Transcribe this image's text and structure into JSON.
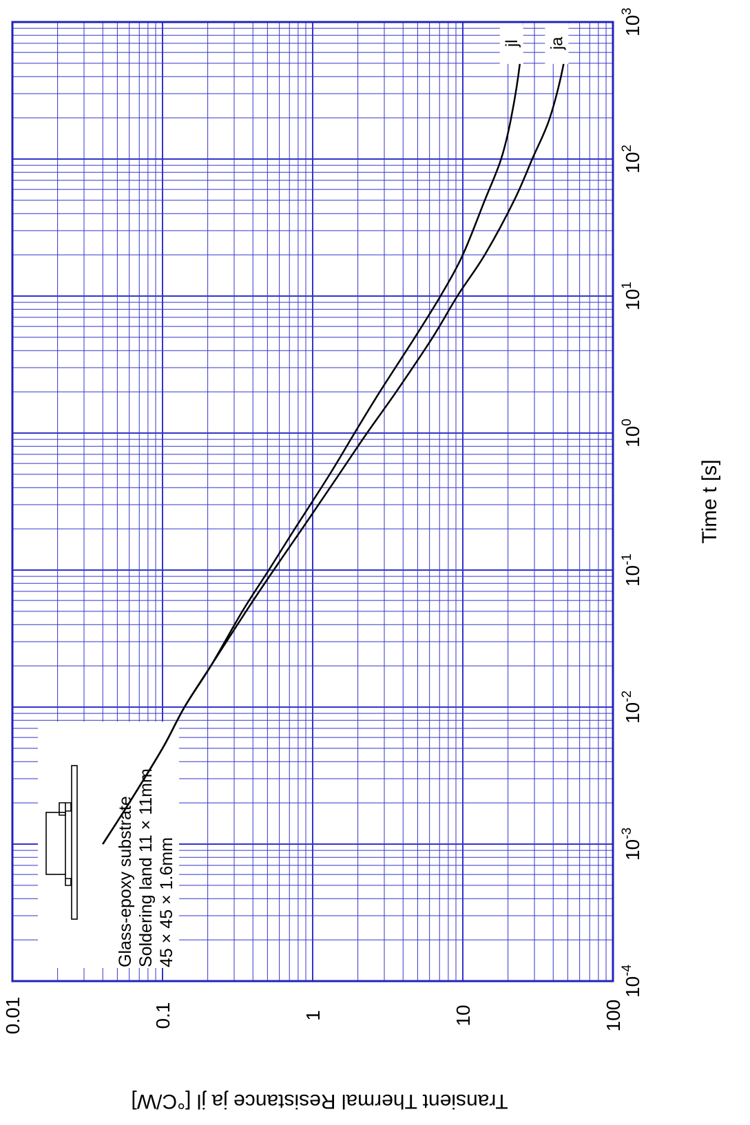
{
  "chart_data": {
    "type": "line",
    "x_scale": "log",
    "y_scale": "log",
    "xlim": [
      0.0001,
      1000
    ],
    "ylim": [
      0.01,
      100
    ],
    "grid": true,
    "xlabel": "Time  t  [s]",
    "ylabel": "Transient Thermal Resistance   ja   jl  [°C/W]",
    "x_ticks": [
      {
        "value": 0.0001,
        "base": "10",
        "exp": "-4"
      },
      {
        "value": 0.001,
        "base": "10",
        "exp": "-3"
      },
      {
        "value": 0.01,
        "base": "10",
        "exp": "-2"
      },
      {
        "value": 0.1,
        "base": "10",
        "exp": "-1"
      },
      {
        "value": 1,
        "base": "10",
        "exp": "0"
      },
      {
        "value": 10,
        "base": "10",
        "exp": "1"
      },
      {
        "value": 100,
        "base": "10",
        "exp": "2"
      },
      {
        "value": 1000,
        "base": "10",
        "exp": "3"
      }
    ],
    "y_ticks": [
      {
        "value": 0.01,
        "label": "0.01"
      },
      {
        "value": 0.1,
        "label": "0.1"
      },
      {
        "value": 1,
        "label": "1"
      },
      {
        "value": 10,
        "label": "10"
      },
      {
        "value": 100,
        "label": "100"
      }
    ],
    "series": [
      {
        "name": "ja",
        "x": [
          0.001,
          0.002,
          0.005,
          0.01,
          0.02,
          0.05,
          0.1,
          0.2,
          0.5,
          1,
          2,
          5,
          10,
          20,
          50,
          100,
          200,
          500,
          1000
        ],
        "y": [
          0.04,
          0.06,
          0.1,
          0.14,
          0.21,
          0.36,
          0.55,
          0.85,
          1.5,
          2.3,
          3.6,
          6.3,
          9.2,
          14,
          22,
          29,
          38,
          47,
          50
        ]
      },
      {
        "name": "jl",
        "x": [
          0.001,
          0.002,
          0.005,
          0.01,
          0.02,
          0.05,
          0.1,
          0.2,
          0.5,
          1,
          2,
          5,
          10,
          20,
          50,
          100,
          200,
          500,
          1000
        ],
        "y": [
          0.04,
          0.06,
          0.1,
          0.14,
          0.21,
          0.34,
          0.51,
          0.76,
          1.3,
          1.9,
          2.8,
          4.8,
          7.1,
          10,
          14,
          18,
          21,
          24,
          25
        ]
      }
    ],
    "annotation_lines": [
      "Glass-epoxy  substrate",
      "Soldering land 11 × 11mm",
      "45 × 45 × 1.6mm"
    ]
  },
  "colors": {
    "grid": "#3333cc",
    "frame": "#2222bb",
    "curve": "#000000"
  }
}
